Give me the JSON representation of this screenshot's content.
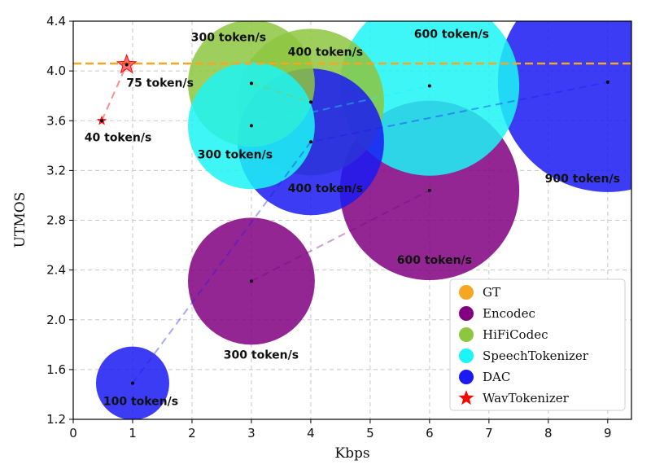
{
  "chart_data": {
    "type": "scatter",
    "subtype": "bubble",
    "title": "",
    "xlabel": "Kbps",
    "ylabel": "UTMOS",
    "xlim": [
      0,
      9.4
    ],
    "ylim": [
      1.2,
      4.4
    ],
    "x_ticks": [
      "0",
      "1",
      "2",
      "3",
      "4",
      "5",
      "6",
      "7",
      "8",
      "9"
    ],
    "y_ticks": [
      "1.2",
      "1.6",
      "2.0",
      "2.4",
      "2.8",
      "3.2",
      "3.6",
      "4.0",
      "4.4"
    ],
    "grid": true,
    "legend_position": "bottom-right",
    "reference_line": {
      "name": "GT",
      "y": 4.06,
      "color": "#F5A623"
    },
    "series": [
      {
        "name": "Encodec",
        "color": "#800080",
        "points": [
          {
            "x": 3,
            "y": 2.31,
            "tokens": 300,
            "label": "300 token/s"
          },
          {
            "x": 6,
            "y": 3.04,
            "tokens": 600,
            "label": "600 token/s"
          }
        ]
      },
      {
        "name": "HiFiCodec",
        "color": "#8DC63F",
        "points": [
          {
            "x": 3,
            "y": 3.9,
            "tokens": 300,
            "label": "300 token/s"
          },
          {
            "x": 4,
            "y": 3.75,
            "tokens": 400,
            "label": "400 token/s"
          }
        ]
      },
      {
        "name": "SpeechTokenizer",
        "color": "#1CF5F5",
        "points": [
          {
            "x": 3,
            "y": 3.56,
            "tokens": 300,
            "label": "300 token/s"
          },
          {
            "x": 6,
            "y": 3.88,
            "tokens": 600,
            "label": "600 token/s"
          }
        ]
      },
      {
        "name": "DAC",
        "color": "#1A1AF2",
        "points": [
          {
            "x": 1,
            "y": 1.49,
            "tokens": 100,
            "label": "100 token/s"
          },
          {
            "x": 4,
            "y": 3.43,
            "tokens": 400,
            "label": "400 token/s"
          },
          {
            "x": 9,
            "y": 3.91,
            "tokens": 900,
            "label": "900 token/s"
          }
        ]
      },
      {
        "name": "WavTokenizer",
        "color": "#FF0000",
        "marker": "star",
        "points": [
          {
            "x": 0.48,
            "y": 3.6,
            "tokens": 40,
            "label": "40 token/s"
          },
          {
            "x": 0.9,
            "y": 4.05,
            "tokens": 75,
            "label": "75 token/s"
          }
        ]
      }
    ],
    "legend": [
      "GT",
      "Encodec",
      "HiFiCodec",
      "SpeechTokenizer",
      "DAC",
      "WavTokenizer"
    ]
  }
}
